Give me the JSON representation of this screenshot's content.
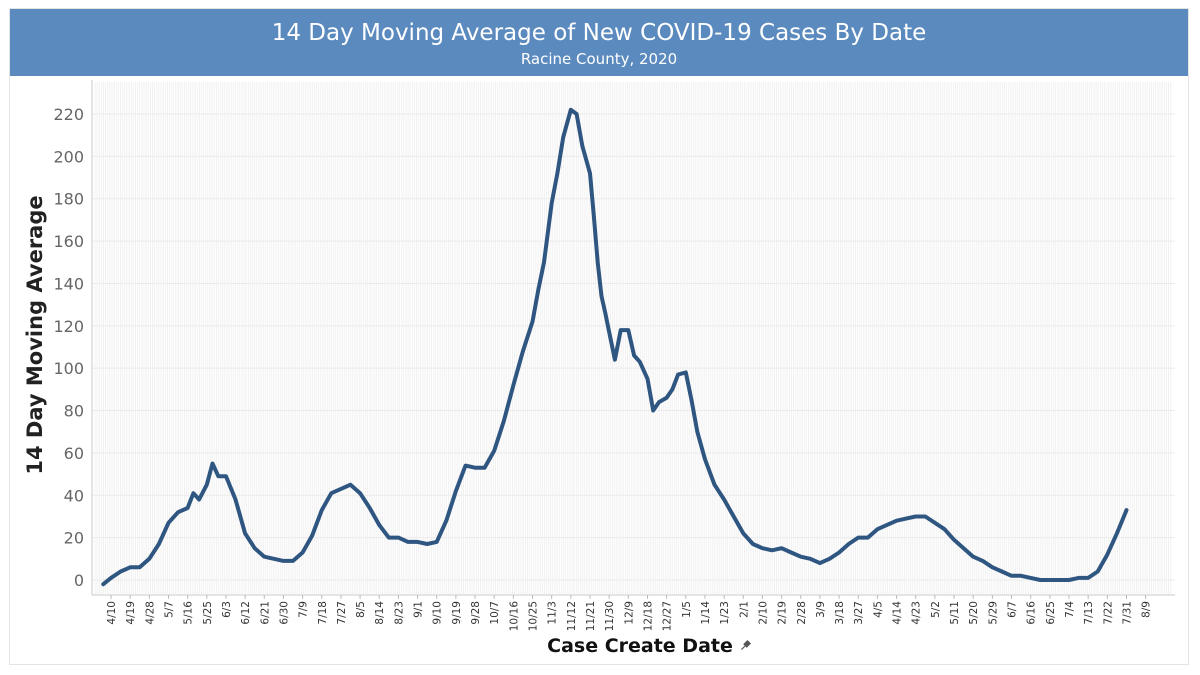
{
  "header": {
    "title": "14 Day Moving Average of New COVID-19 Cases By Date",
    "subtitle": "Racine County, 2020"
  },
  "colors": {
    "header_bg": "#5b8abf",
    "line": "#2f5681"
  },
  "icons": {
    "xlabel_icon": "pin-icon"
  },
  "chart_data": {
    "type": "line",
    "title": "14 Day Moving Average of New COVID-19 Cases By Date",
    "subtitle": "Racine County, 2020",
    "xlabel": "Case Create Date",
    "ylabel": "14 Day Moving Average",
    "ylim": [
      -5,
      230
    ],
    "yticks": [
      0,
      20,
      40,
      60,
      80,
      100,
      120,
      140,
      160,
      180,
      200,
      220
    ],
    "xtick_labels": [
      "4/10",
      "4/19",
      "4/28",
      "5/7",
      "5/16",
      "5/25",
      "6/3",
      "6/12",
      "6/21",
      "6/30",
      "7/9",
      "7/18",
      "7/27",
      "8/5",
      "8/14",
      "8/23",
      "9/1",
      "9/10",
      "9/19",
      "9/28",
      "10/7",
      "10/16",
      "10/25",
      "11/3",
      "11/12",
      "11/21",
      "11/30",
      "12/9",
      "12/18",
      "12/27",
      "1/5",
      "1/14",
      "1/23",
      "2/1",
      "2/10",
      "2/19",
      "2/28",
      "3/9",
      "3/18",
      "3/27",
      "4/5",
      "4/14",
      "4/23",
      "5/2",
      "5/11",
      "5/20",
      "5/29",
      "6/7",
      "6/16",
      "6/25",
      "7/4",
      "7/13",
      "7/22",
      "7/31",
      "8/9"
    ],
    "grid": true,
    "series": [
      {
        "x_tick_index": [
          -0.4,
          0,
          0.5,
          1,
          1.5,
          2,
          2.5,
          3,
          3.5,
          4,
          4.3,
          4.6,
          5,
          5.3,
          5.6,
          6,
          6.5,
          7,
          7.5,
          8,
          8.5,
          9,
          9.5,
          10,
          10.5,
          11,
          11.5,
          12,
          12.5,
          13,
          13.5,
          14,
          14.5,
          15,
          15.5,
          16,
          16.5,
          17,
          17.5,
          18,
          18.5,
          19,
          19.5,
          20,
          20.5,
          21,
          21.5,
          22,
          22.3,
          22.6,
          23,
          23.3,
          23.6,
          24,
          24.3,
          24.6,
          25,
          25.2,
          25.4,
          25.6,
          25.8,
          26,
          26.3,
          26.6,
          27,
          27.3,
          27.6,
          28,
          28.3,
          28.6,
          29,
          29.3,
          29.6,
          30,
          30.3,
          30.6,
          31,
          31.5,
          32,
          32.5,
          33,
          33.5,
          34,
          34.5,
          35,
          35.5,
          36,
          36.5,
          37,
          37.5,
          38,
          38.5,
          39,
          39.5,
          40,
          40.5,
          41,
          41.5,
          42,
          42.5,
          43,
          43.5,
          44,
          44.5,
          45,
          45.5,
          46,
          46.5,
          47,
          47.5,
          48,
          48.5,
          49,
          49.5,
          50,
          50.5,
          51,
          51.5,
          52,
          52.5,
          53,
          53.5,
          53.9
        ],
        "values": [
          -2,
          1,
          4,
          6,
          6,
          10,
          17,
          27,
          32,
          34,
          41,
          38,
          45,
          55,
          49,
          49,
          38,
          22,
          15,
          11,
          10,
          9,
          9,
          13,
          21,
          33,
          41,
          43,
          45,
          41,
          34,
          26,
          20,
          20,
          18,
          18,
          17,
          18,
          28,
          42,
          54,
          53,
          53,
          61,
          75,
          92,
          108,
          122,
          137,
          150,
          178,
          192,
          209,
          222,
          220,
          205,
          192,
          172,
          150,
          134,
          126,
          117,
          104,
          118,
          118,
          106,
          103,
          95,
          80,
          84,
          86,
          90,
          97,
          98,
          85,
          70,
          57,
          45,
          38,
          30,
          22,
          17,
          15,
          14,
          15,
          13,
          11,
          10,
          8,
          10,
          13,
          17,
          20,
          20,
          24,
          26,
          28,
          29,
          30,
          30,
          27,
          24,
          19,
          15,
          11,
          9,
          6,
          4,
          2,
          2,
          1,
          0,
          0,
          0,
          0,
          1,
          1,
          4,
          12,
          22,
          33
        ]
      }
    ]
  }
}
